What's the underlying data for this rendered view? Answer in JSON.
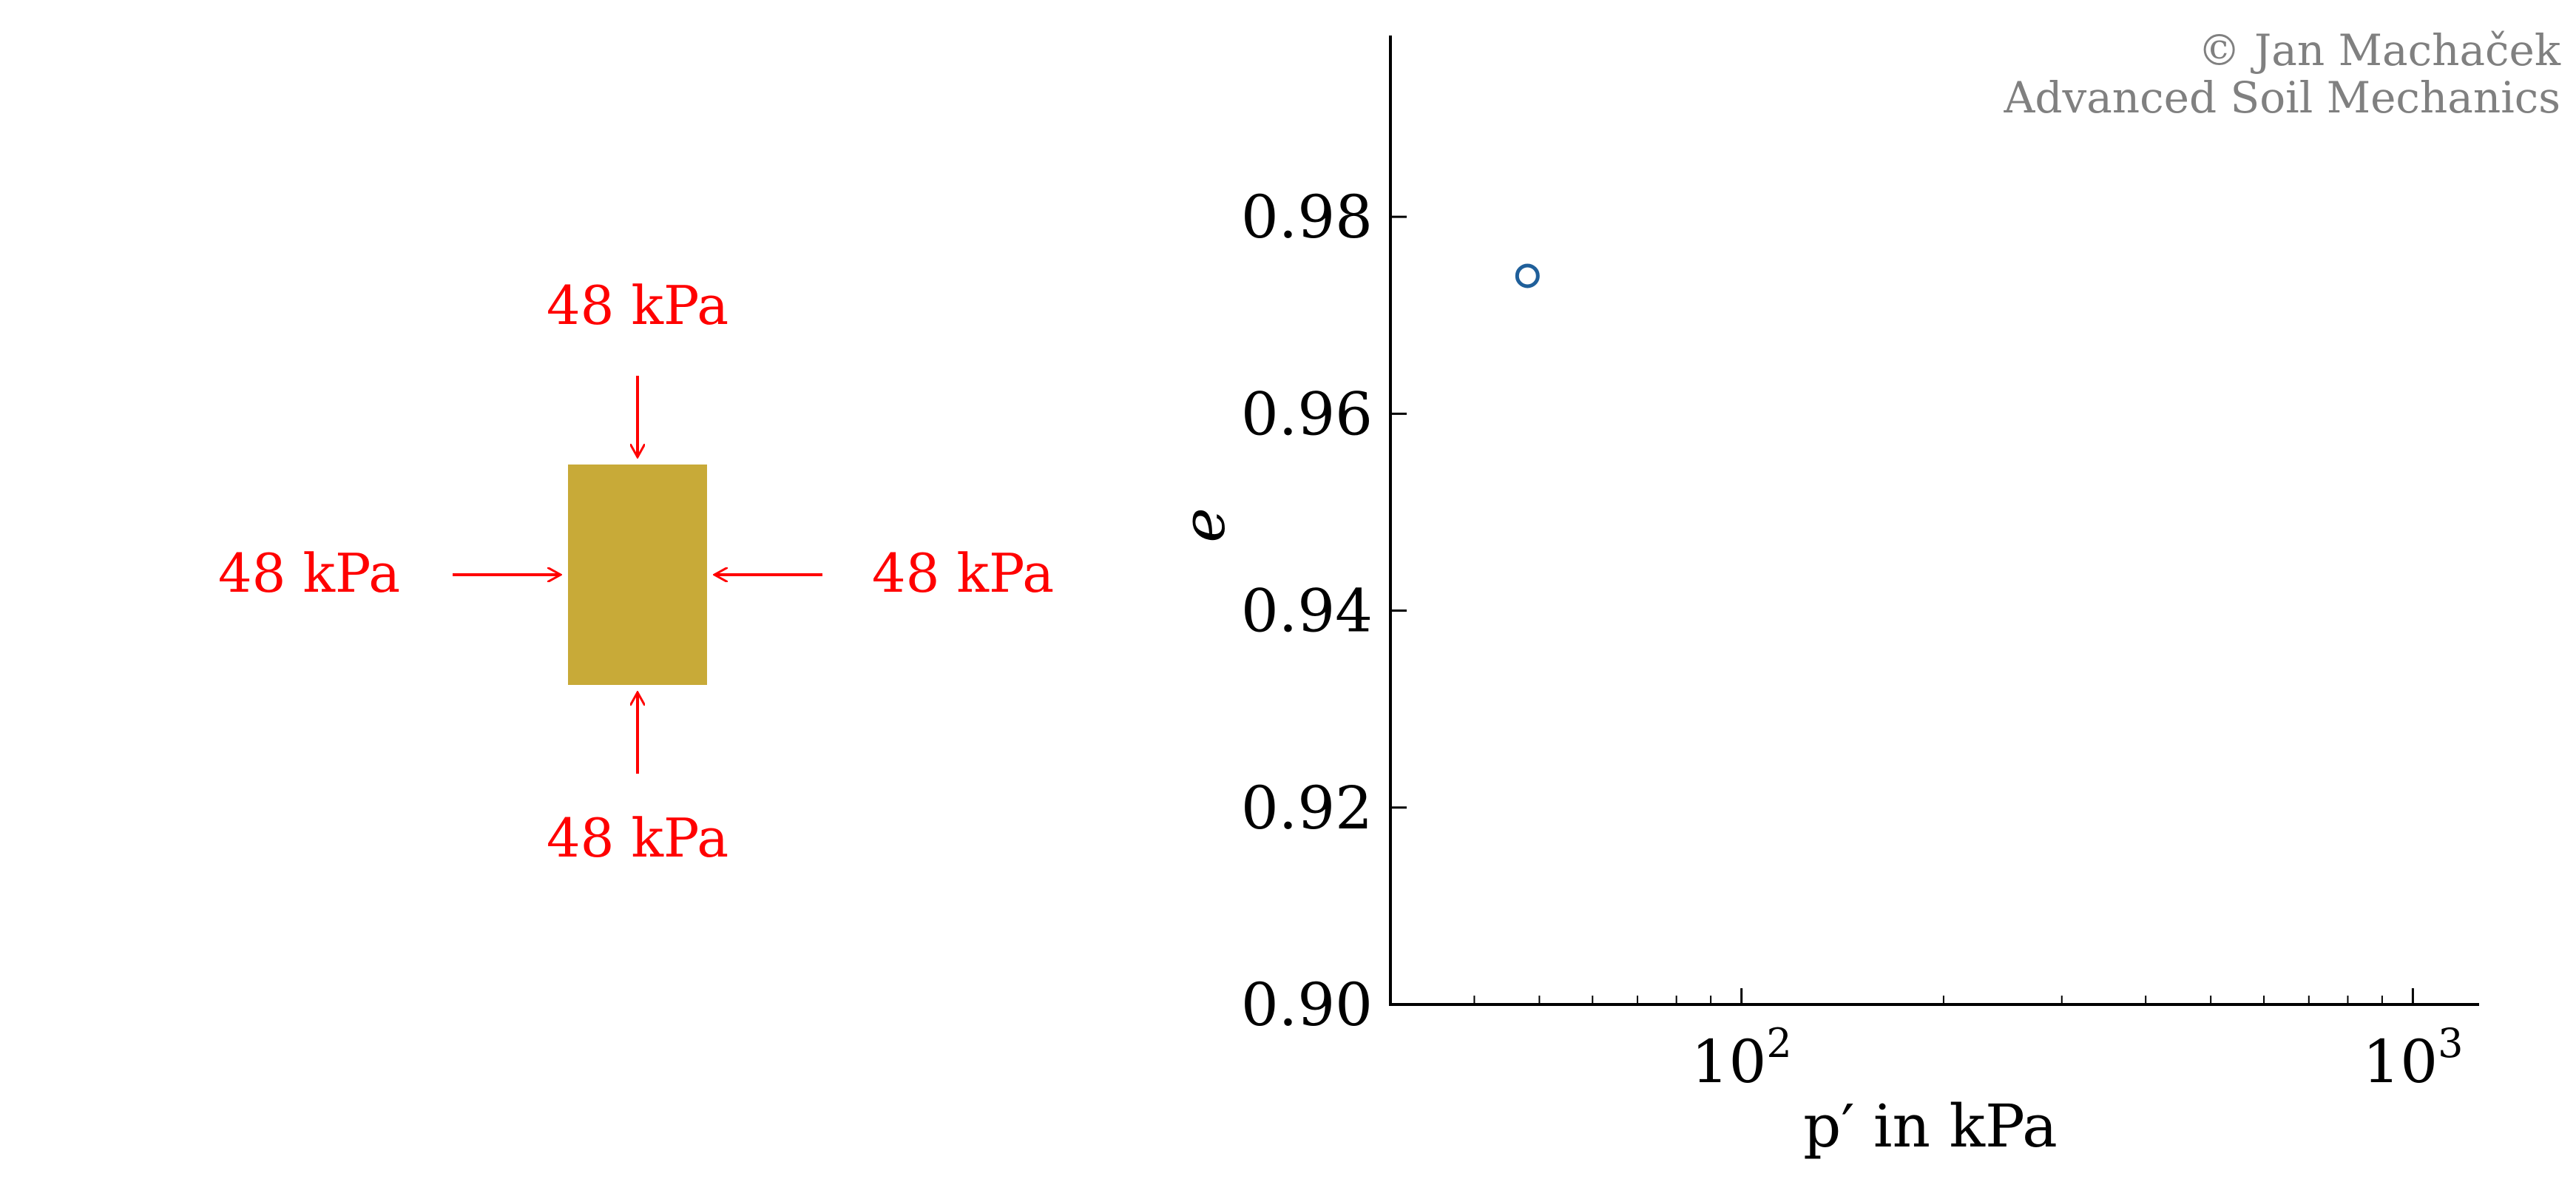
{
  "copyright": {
    "line1": "© Jan Machaček",
    "line2": "Advanced Soil Mechanics"
  },
  "specimen": {
    "fill_color": "#c8aa38",
    "arrow_color": "#ff0000",
    "stress_top": "48 kPa",
    "stress_bottom": "48 kPa",
    "stress_left": "48 kPa",
    "stress_right": "48 kPa"
  },
  "chart_data": {
    "type": "scatter",
    "xlabel": "p′ in kPa",
    "ylabel": "e",
    "x_scale": "log",
    "xlim": [
      30,
      1100
    ],
    "ylim": [
      0.9,
      0.99
    ],
    "x_ticks": [
      100,
      1000
    ],
    "x_tick_labels": [
      {
        "base": "10",
        "exp": "2"
      },
      {
        "base": "10",
        "exp": "3"
      }
    ],
    "y_ticks": [
      0.9,
      0.92,
      0.94,
      0.96,
      0.98
    ],
    "y_tick_labels": [
      "0.90",
      "0.92",
      "0.94",
      "0.96",
      "0.98"
    ],
    "grid": false,
    "marker": "open-circle",
    "marker_color": "#1f5f9a",
    "points": [
      {
        "x": 48,
        "y": 0.974
      }
    ]
  }
}
